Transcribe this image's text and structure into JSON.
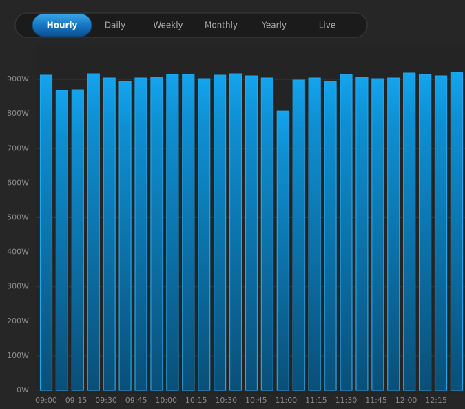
{
  "tabs": [
    "Hourly",
    "Daily",
    "Weekly",
    "Monthly",
    "Yearly",
    "Live"
  ],
  "active_tab": 0,
  "chart_data": {
    "type": "bar",
    "categories": [
      null,
      null,
      null,
      null,
      null,
      null,
      null,
      null,
      null,
      null,
      null,
      null,
      null,
      null,
      null,
      null,
      null,
      null,
      null,
      null,
      null,
      null,
      null,
      null,
      null,
      null,
      null
    ],
    "values": [
      912,
      868,
      870,
      916,
      904,
      894,
      904,
      906,
      914,
      914,
      902,
      912,
      916,
      910,
      904,
      808,
      898,
      904,
      894,
      914,
      906,
      902,
      904,
      918,
      914,
      910,
      920
    ],
    "color": "#1aa9f0",
    "x_tick_labels": [
      "09:00",
      "09:15",
      "09:30",
      "09:45",
      "10:00",
      "10:15",
      "10:30",
      "10:45",
      "11:00",
      "11:15",
      "11:30",
      "11:45",
      "12:00",
      "12:15"
    ],
    "ylim": [
      0,
      1000
    ],
    "yticks": [
      {
        "value": 0,
        "label": "0W"
      },
      {
        "value": 100,
        "label": "100W"
      },
      {
        "value": 200,
        "label": "200W"
      },
      {
        "value": 300,
        "label": "300W"
      },
      {
        "value": 400,
        "label": "400W"
      },
      {
        "value": 500,
        "label": "500W"
      },
      {
        "value": 600,
        "label": "600W"
      },
      {
        "value": 700,
        "label": "700W"
      },
      {
        "value": 800,
        "label": "800W"
      },
      {
        "value": 900,
        "label": "900W"
      }
    ],
    "grid": true
  }
}
